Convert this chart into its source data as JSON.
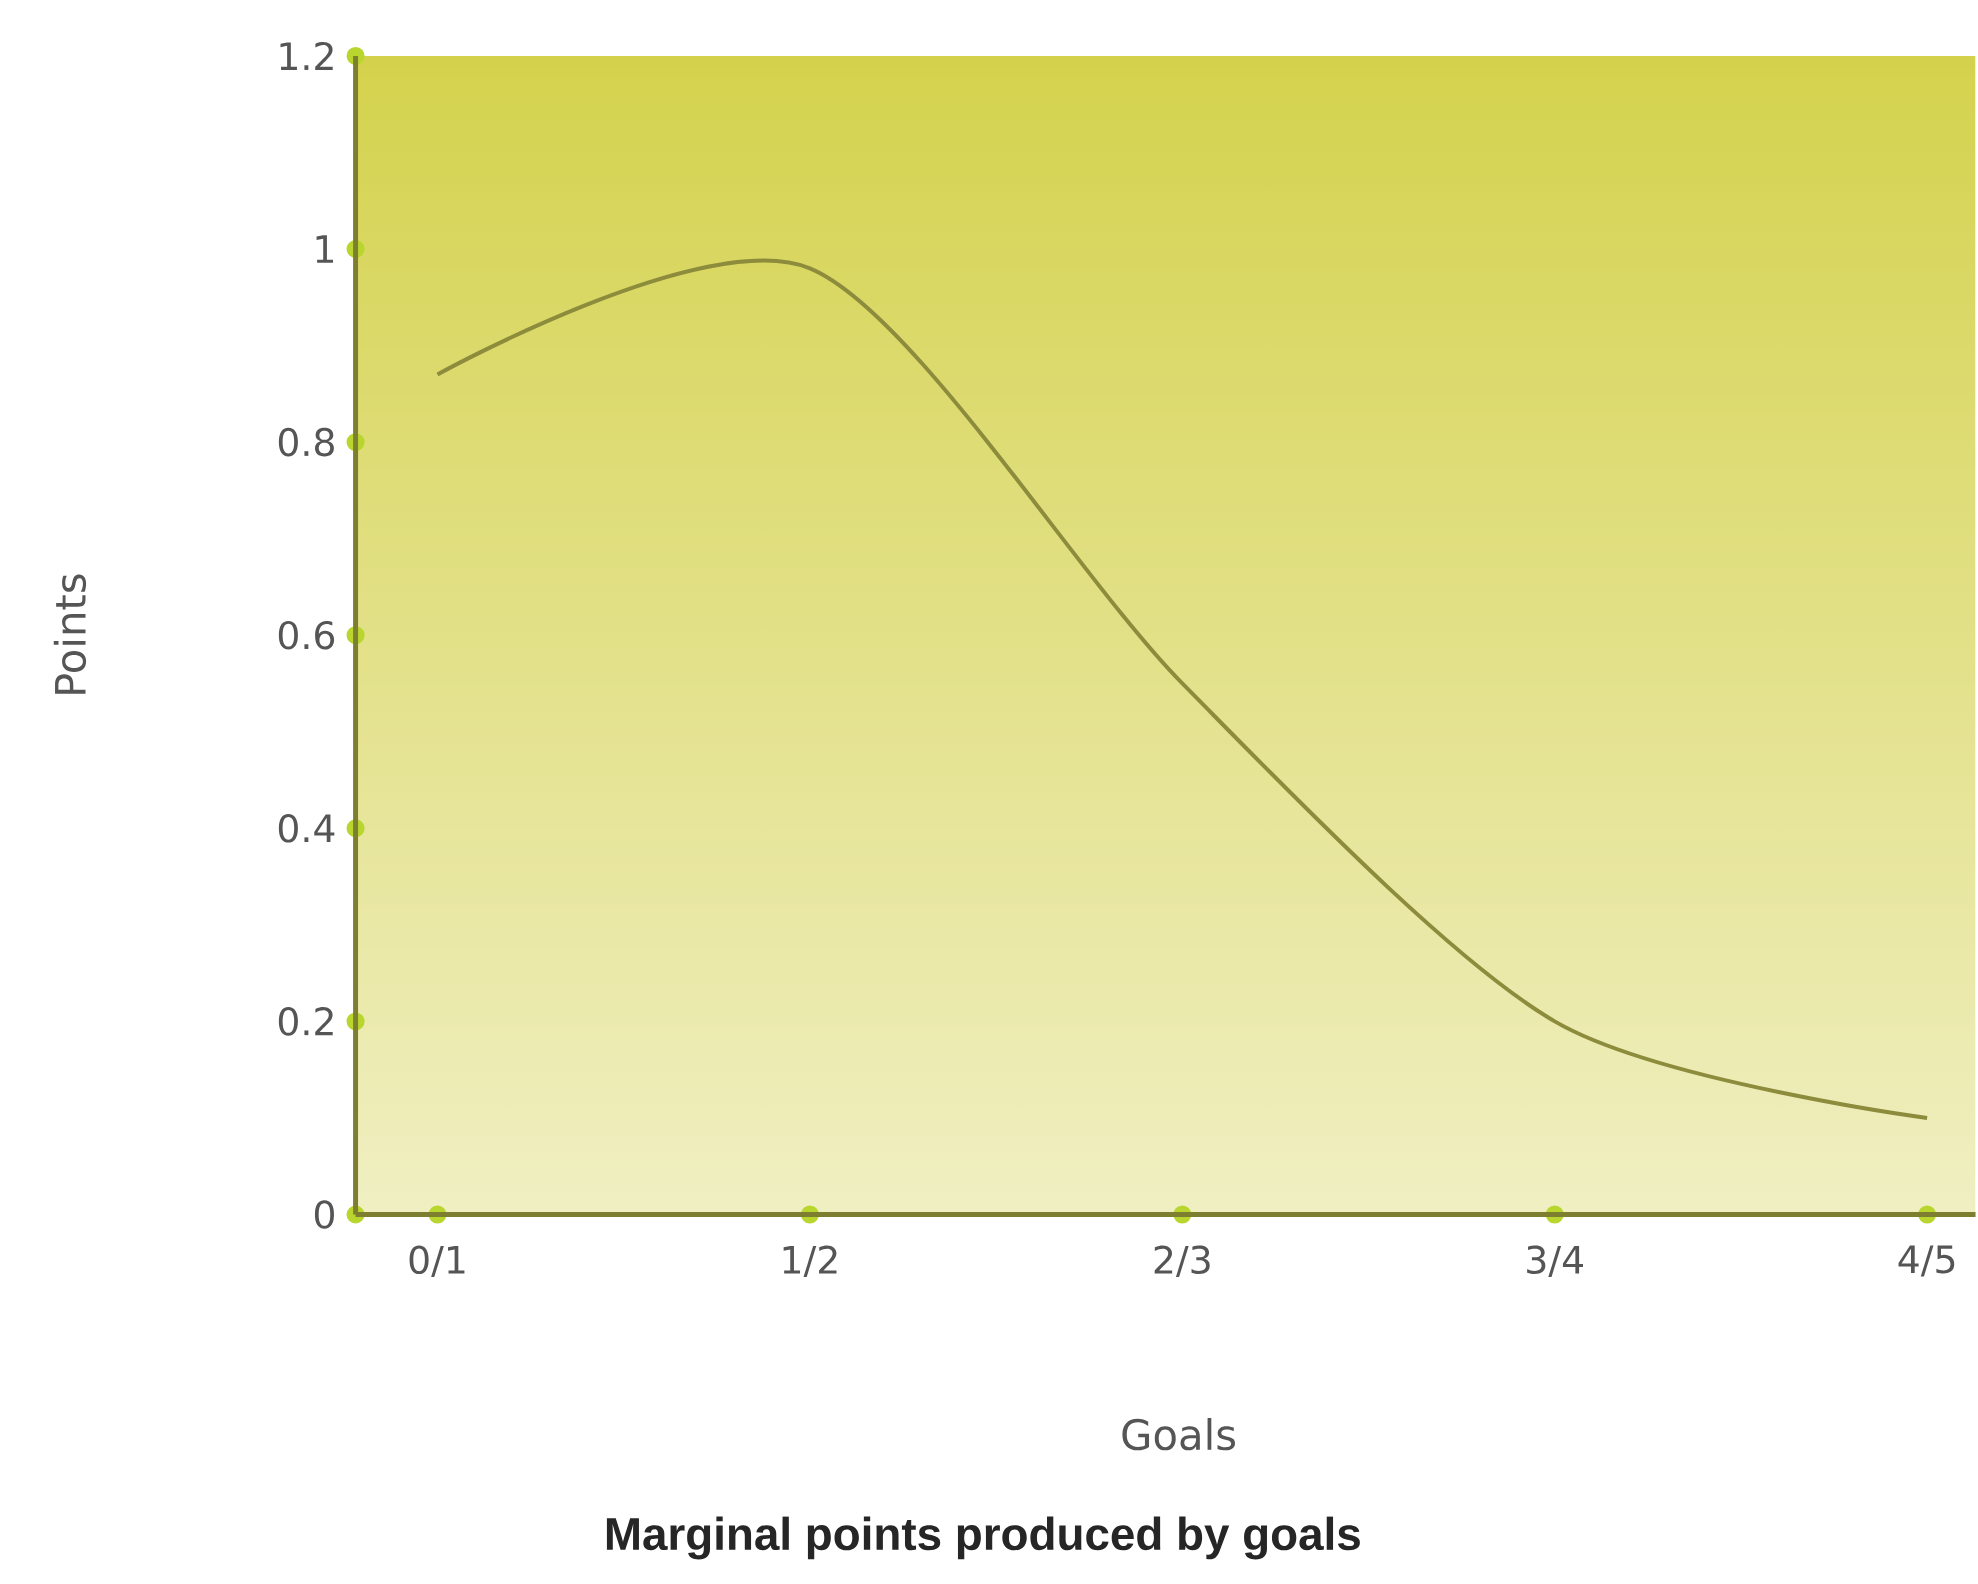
{
  "chart_data": {
    "type": "line",
    "title": "Marginal points produced by goals",
    "xlabel": "Goals",
    "ylabel": "Points",
    "categories": [
      "0/1",
      "1/2",
      "2/3",
      "3/4",
      "4/5"
    ],
    "series": [
      {
        "color": "#8c8c3c",
        "values": [
          0.87,
          0.98,
          0.55,
          0.2,
          0.1
        ]
      }
    ],
    "ylim": [
      0,
      1.2
    ],
    "yticks": [
      0,
      0.2,
      0.4,
      0.6,
      0.8,
      1,
      1.2
    ],
    "grid": false,
    "marker": "none",
    "line_style": "solid"
  }
}
